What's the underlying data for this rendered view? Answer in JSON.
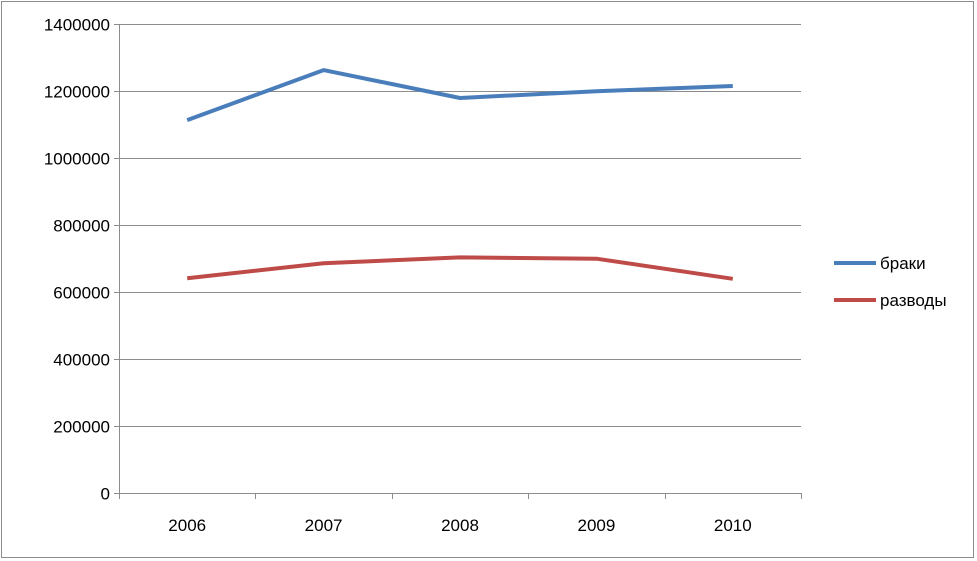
{
  "chart_data": {
    "type": "line",
    "categories": [
      "2006",
      "2007",
      "2008",
      "2009",
      "2010"
    ],
    "series": [
      {
        "name": "браки",
        "values": [
          1113000,
          1262500,
          1179000,
          1199400,
          1215000
        ],
        "color": "#4a7ebb"
      },
      {
        "name": "разводы",
        "values": [
          641000,
          685900,
          703400,
          699400,
          639300
        ],
        "color": "#be4b48"
      }
    ],
    "ylim": [
      0,
      1400000
    ],
    "yticks": [
      "0",
      "200000",
      "400000",
      "600000",
      "800000",
      "1000000",
      "1200000",
      "1400000"
    ],
    "grid": true,
    "legend_position": "right",
    "title": "",
    "xlabel": "",
    "ylabel": ""
  }
}
